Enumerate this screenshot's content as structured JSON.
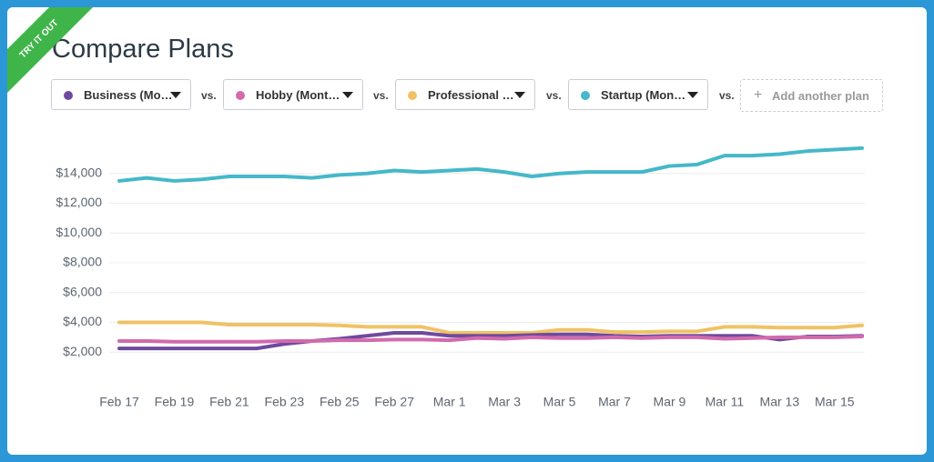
{
  "ribbon": "TRY IT OUT",
  "header": {
    "title": "Compare Plans"
  },
  "separators": [
    "vs.",
    "vs.",
    "vs.",
    "vs."
  ],
  "add_button": "Add another plan",
  "chart_data": {
    "type": "line",
    "categories": [
      "Feb 17",
      null,
      "Feb 19",
      null,
      "Feb 21",
      null,
      "Feb 23",
      null,
      "Feb 25",
      null,
      "Feb 27",
      null,
      "Mar 1",
      null,
      "Mar 3",
      null,
      "Mar 5",
      null,
      "Mar 7",
      null,
      "Mar 9",
      null,
      "Mar 11",
      null,
      "Mar 13",
      null,
      "Mar 15",
      null
    ],
    "series": [
      {
        "name": "Business (Mo…",
        "color": "#6e4a9e",
        "values": [
          2250,
          2250,
          2250,
          2250,
          2250,
          2250,
          2550,
          2750,
          2900,
          3100,
          3300,
          3300,
          3100,
          3100,
          3100,
          3150,
          3200,
          3200,
          3100,
          3050,
          3100,
          3100,
          3100,
          3100,
          2850,
          3050,
          3050,
          3100
        ]
      },
      {
        "name": "Hobby (Mont…",
        "color": "#d26aad",
        "values": [
          2750,
          2750,
          2700,
          2700,
          2700,
          2700,
          2750,
          2750,
          2800,
          2800,
          2850,
          2850,
          2800,
          2950,
          2900,
          3000,
          2950,
          2950,
          3000,
          2950,
          3000,
          3000,
          2900,
          2950,
          3000,
          3000,
          3000,
          3050
        ]
      },
      {
        "name": "Professional …",
        "color": "#f0c265",
        "values": [
          4000,
          4000,
          4000,
          4000,
          3850,
          3850,
          3850,
          3850,
          3800,
          3700,
          3700,
          3700,
          3300,
          3300,
          3300,
          3300,
          3500,
          3500,
          3350,
          3350,
          3400,
          3400,
          3700,
          3700,
          3650,
          3650,
          3650,
          3800
        ]
      },
      {
        "name": "Startup (Mon…",
        "color": "#45b8c9",
        "values": [
          13500,
          13700,
          13500,
          13600,
          13800,
          13800,
          13800,
          13700,
          13900,
          14000,
          14200,
          14100,
          14200,
          14300,
          14100,
          13800,
          14000,
          14100,
          14100,
          14100,
          14500,
          14600,
          15200,
          15200,
          15300,
          15500,
          15600,
          15700
        ]
      }
    ],
    "ylim": [
      0,
      16000
    ],
    "yticks": [
      {
        "value": 2000,
        "label": "$2,000"
      },
      {
        "value": 4000,
        "label": "$4,000"
      },
      {
        "value": 6000,
        "label": "$6,000"
      },
      {
        "value": 8000,
        "label": "$8,000"
      },
      {
        "value": 10000,
        "label": "$10,000"
      },
      {
        "value": 12000,
        "label": "$12,000"
      },
      {
        "value": 14000,
        "label": "$14,000"
      }
    ],
    "grid": true
  }
}
